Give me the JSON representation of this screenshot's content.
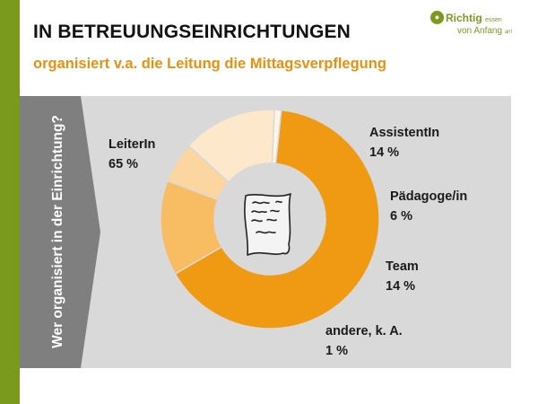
{
  "colors": {
    "accent_green": "#7a9a1e",
    "subtitle_orange": "#e8910f",
    "title_dark": "#111111",
    "panel_gray": "#d9d9d9",
    "arrow_gray": "#7f7f7f",
    "hole_gray": "#d9d9d9"
  },
  "header": {
    "title": "IN BETREUUNGSEINRICHTUNGEN",
    "subtitle": "organisiert v.a. die Leitung die Mittagsverpflegung"
  },
  "logo": {
    "icon": "apple-icon",
    "line1": "Richtig",
    "line1_small": "essen",
    "line2": "von Anfang",
    "line2_small": "an!"
  },
  "side_question": "Wer organisiert in der Einrichtung?",
  "center_icon": "menu-paper-icon",
  "chart_data": {
    "type": "donut",
    "title": "Wer organisiert in der Einrichtung?",
    "start_angle_deg": 6,
    "direction": "clockwise-from-top",
    "categories": [
      "LeiterIn",
      "AssistentIn",
      "Pädagoge/in",
      "Team",
      "andere, k. A."
    ],
    "values": [
      65,
      14,
      6,
      14,
      1
    ],
    "value_labels": [
      "65 %",
      "14 %",
      "6 %",
      "14 %",
      "1 %"
    ],
    "colors": [
      "#ef9a12",
      "#f8bd63",
      "#fbd6a0",
      "#fde8cc",
      "#fff5e6"
    ]
  }
}
